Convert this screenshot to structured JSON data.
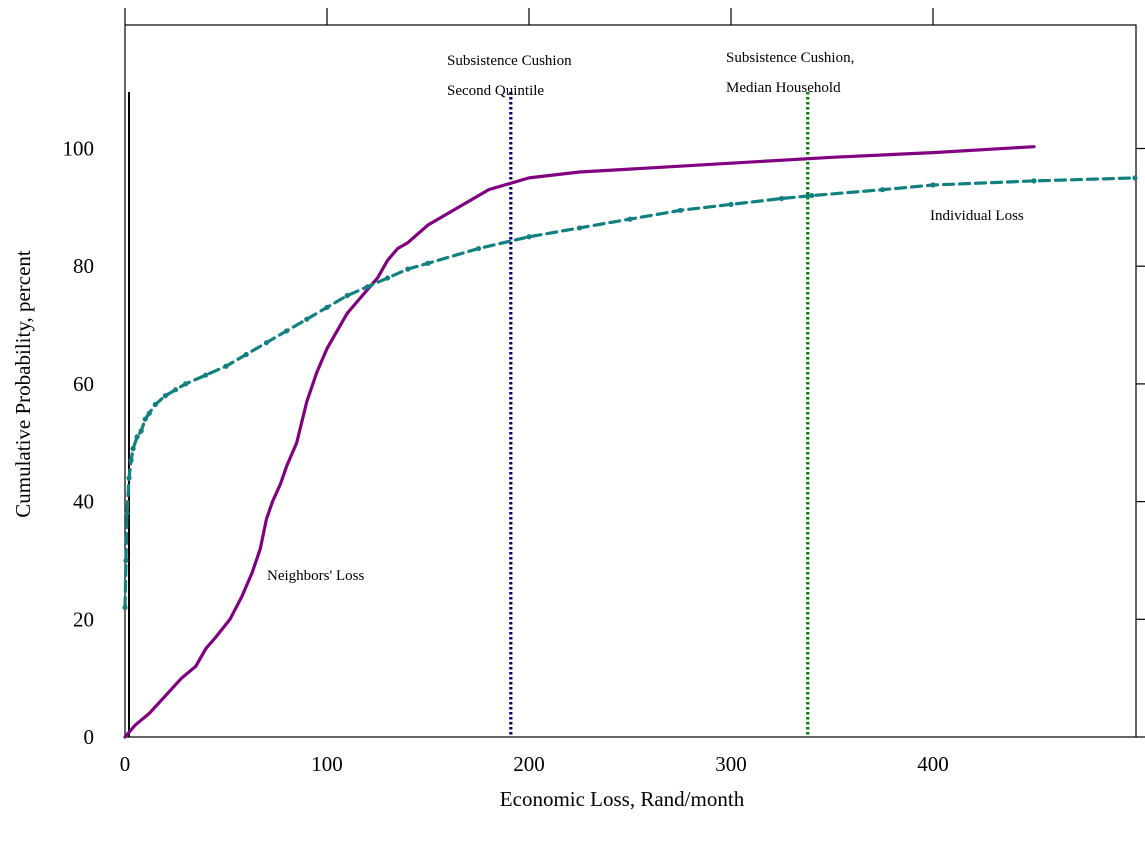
{
  "chart_data": {
    "type": "line",
    "title": "",
    "xlabel": "Economic Loss, Rand/month",
    "ylabel": "Cumulative Probability, percent",
    "xlim": [
      0,
      500
    ],
    "ylim": [
      0,
      105
    ],
    "x_ticks": [
      0,
      100,
      200,
      300,
      400
    ],
    "y_ticks": [
      0,
      20,
      40,
      60,
      80,
      100
    ],
    "grid": false,
    "legend": "none",
    "series": [
      {
        "name": "Neighbors' Loss",
        "color": "#800080",
        "style": "solid",
        "x": [
          0,
          5,
          12,
          20,
          28,
          35,
          40,
          45,
          52,
          58,
          63,
          67,
          70,
          73,
          77,
          80,
          85,
          90,
          95,
          100,
          105,
          110,
          115,
          120,
          125,
          130,
          135,
          140,
          150,
          160,
          170,
          180,
          190,
          200,
          225,
          250,
          300,
          350,
          400,
          450
        ],
        "y": [
          0,
          2,
          4,
          7,
          10,
          12,
          15,
          17,
          20,
          24,
          28,
          32,
          37,
          40,
          43,
          46,
          50,
          57,
          62,
          66,
          69,
          72,
          74,
          76,
          78,
          81,
          83,
          84,
          87,
          89,
          91,
          93,
          94,
          95,
          96,
          96.5,
          97.5,
          98.5,
          99.3,
          100.3
        ]
      },
      {
        "name": "Individual Loss",
        "color": "#128080",
        "style": "dashed",
        "x": [
          0,
          0.5,
          1,
          2,
          3,
          4,
          6,
          8,
          10,
          12,
          15,
          20,
          25,
          30,
          40,
          50,
          60,
          70,
          80,
          90,
          100,
          110,
          120,
          130,
          140,
          150,
          175,
          200,
          225,
          250,
          275,
          300,
          325,
          340,
          375,
          400,
          450,
          500
        ],
        "y": [
          22,
          30,
          38,
          44,
          47,
          49,
          51,
          52,
          54,
          55,
          56.5,
          58,
          59,
          60,
          61.5,
          63,
          65,
          67,
          69,
          71,
          73,
          75,
          76.5,
          78,
          79.5,
          80.5,
          83,
          85,
          86.5,
          88,
          89.5,
          90.5,
          91.5,
          92,
          93,
          93.8,
          94.5,
          95
        ]
      }
    ],
    "reference_lines": [
      {
        "x": 191,
        "color": "#000080",
        "style": "dotted",
        "label_line1": "Subsistence Cushion",
        "label_line2": "Second Quintile"
      },
      {
        "x": 338,
        "color": "#008000",
        "style": "dotted",
        "label_line1": "Subsistence Cushion,",
        "label_line2": "Median Household"
      }
    ]
  }
}
